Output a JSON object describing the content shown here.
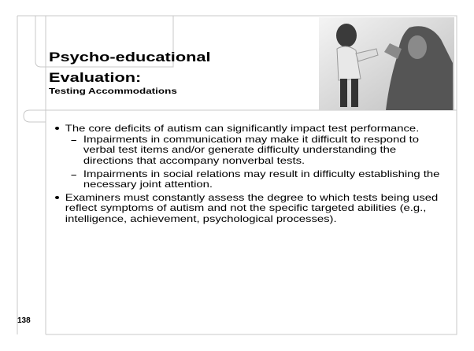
{
  "slide": {
    "title": "Psycho-educational Evaluation:",
    "subtitle": "Testing Accommodations",
    "bullets": [
      {
        "text": "The core deficits of autism can significantly impact test performance.",
        "sub": [
          "Impairments in communication may make it difficult to respond to verbal test items and/or generate difficulty understanding the directions that accompany nonverbal tests.",
          "Impairments in social relations may result in difficulty establishing the necessary joint attention."
        ]
      },
      {
        "text": "Examiners must constantly assess the degree to which tests being used reflect symptoms of autism and not the specific targeted abilities (e.g., intelligence, achievement, psychological processes).",
        "sub": []
      }
    ],
    "page_number": "138"
  }
}
